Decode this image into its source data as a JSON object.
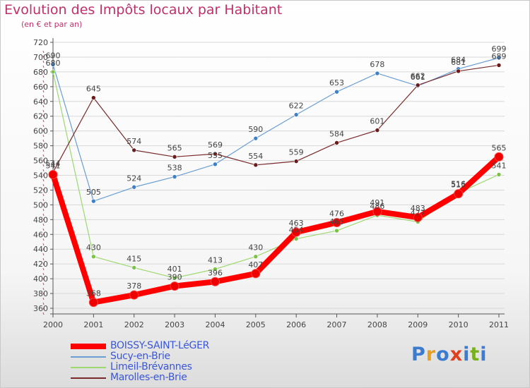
{
  "colors": {
    "title": "#c0306a",
    "legend_text": "#3a57d6",
    "axis": "#555555",
    "grid": "#d8d8d8",
    "logo": [
      "#3b7bd0",
      "#e8a020",
      "#3b7bd0",
      "#e04020",
      "#3b7bd0",
      "#7ab020"
    ]
  },
  "logo": {
    "text": "Proxiti",
    "letters": [
      "P",
      "r",
      "o",
      "x",
      "i",
      "t",
      "i"
    ]
  },
  "chart_data": {
    "type": "line",
    "title": "Evolution des Impôts locaux par Habitant",
    "subtitle": "(en € et par an)",
    "xlabel": "",
    "ylabel": "",
    "ylim": [
      360,
      720
    ],
    "ytick_step": 20,
    "grid": "horizontal",
    "legend_position": "bottom-left",
    "categories": [
      "2000",
      "2001",
      "2002",
      "2003",
      "2004",
      "2005",
      "2006",
      "2007",
      "2008",
      "2009",
      "2010",
      "2011"
    ],
    "series": [
      {
        "name": "BOISSY-SAINT-LéGER",
        "color": "#ff0000",
        "marker_color": "#ee0000",
        "emphasis": true,
        "values": [
          541,
          368,
          378,
          390,
          396,
          407,
          463,
          476,
          491,
          483,
          515,
          565
        ],
        "labels": [
          "541",
          "368",
          "378",
          "390",
          "396",
          "407",
          "463",
          "476",
          "491",
          "483",
          "515",
          "565"
        ]
      },
      {
        "name": "Sucy-en-Brie",
        "color": "#6a9ed4",
        "marker_color": "#3f7fc4",
        "emphasis": false,
        "values": [
          690,
          505,
          524,
          538,
          555,
          590,
          622,
          653,
          678,
          661,
          684,
          699
        ],
        "labels": [
          "690",
          "505",
          "524",
          "538",
          "555",
          "590",
          "622",
          "653",
          "678",
          "661",
          "684",
          "699"
        ]
      },
      {
        "name": "Limeil-Brévannes",
        "color": "#9ed870",
        "marker_color": "#7cc24a",
        "emphasis": false,
        "values": [
          680,
          430,
          415,
          401,
          413,
          430,
          454,
          465,
          486,
          477,
          516,
          541
        ],
        "labels": [
          "680",
          "430",
          "415",
          "401",
          "413",
          "430",
          "454",
          "465",
          "486",
          "477",
          "516",
          "541"
        ]
      },
      {
        "name": "Marolles-en-Brie",
        "color": "#7a2a2a",
        "marker_color": "#6a1c1c",
        "emphasis": false,
        "values": [
          544,
          645,
          574,
          565,
          569,
          554,
          559,
          584,
          601,
          662,
          681,
          689
        ],
        "labels": [
          "544",
          "645",
          "574",
          "565",
          "569",
          "554",
          "559",
          "584",
          "601",
          "662",
          "681",
          "689"
        ]
      }
    ]
  }
}
